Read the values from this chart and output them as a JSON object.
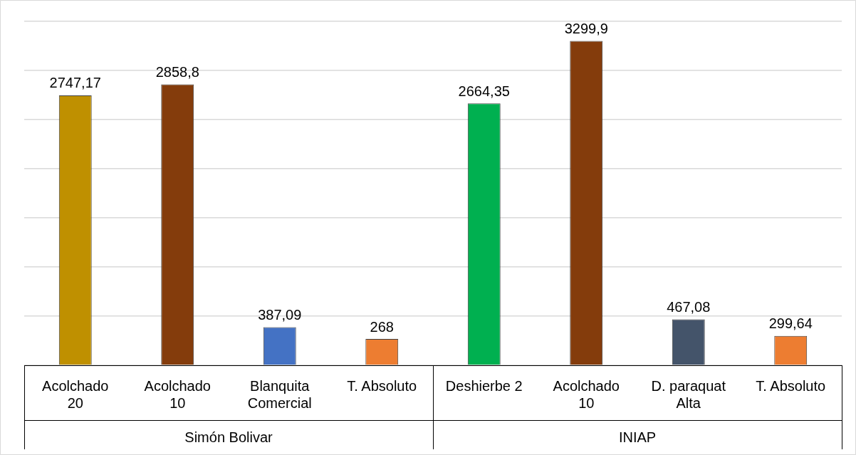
{
  "chart_data": {
    "type": "bar",
    "categories": [
      "Acolchado 20",
      "Acolchado 10",
      "Blanquita Comercial",
      "T. Absoluto",
      "Deshierbe 2",
      "Acolchado 10",
      "D. paraquat Alta",
      "T. Absoluto"
    ],
    "values": [
      2747.17,
      2858.8,
      387.09,
      268,
      2664.35,
      3299.9,
      467.08,
      299.64
    ],
    "value_labels": [
      "2747,17",
      "2858,8",
      "387,09",
      "268",
      "2664,35",
      "3299,9",
      "467,08",
      "299,64"
    ],
    "colors": [
      "#bf9000",
      "#843c0c",
      "#4472c4",
      "#ed7d31",
      "#00b050",
      "#843c0c",
      "#44546a",
      "#ed7d31"
    ],
    "grid": "y",
    "tick_labels": "x",
    "legend": false,
    "annotations": [
      "Simón Bolivar",
      "INIAP"
    ]
  }
}
